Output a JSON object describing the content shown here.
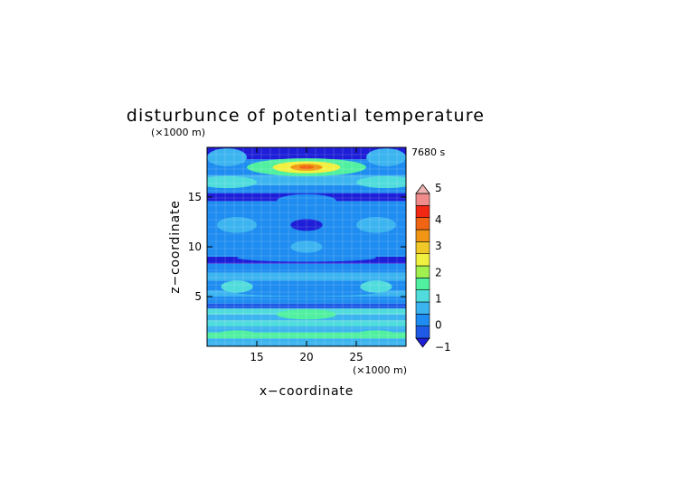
{
  "chart_data": {
    "type": "heatmap",
    "title": "disturbunce of potential temperature",
    "time_label": "7680 s",
    "xlabel": "x−coordinate",
    "ylabel": "z−coordinate",
    "x_unit": "(×1000 m)",
    "y_unit": "(×1000 m)",
    "xlim": [
      10,
      30
    ],
    "ylim": [
      0,
      20
    ],
    "x_ticks": [
      15,
      20,
      25
    ],
    "y_ticks": [
      5,
      10,
      15
    ],
    "x_tick_labels": [
      "15",
      "20",
      "25"
    ],
    "y_tick_labels": [
      "5",
      "10",
      "15"
    ],
    "grid": true,
    "colorbar": {
      "min": -1,
      "max": 5,
      "step": 0.5,
      "tick_values": [
        -1,
        0,
        1,
        2,
        3,
        4,
        5
      ],
      "tick_labels": [
        "−1",
        "0",
        "1",
        "2",
        "3",
        "4",
        "5"
      ],
      "colors": [
        "#1e1ed8",
        "#1e5ae6",
        "#1e8cf0",
        "#3cb4f0",
        "#50dcdc",
        "#50f0a0",
        "#a0f050",
        "#f0f040",
        "#f0c828",
        "#f09614",
        "#f06414",
        "#f02814",
        "#f08c8c",
        "#f0b4b4"
      ],
      "placement": "right"
    },
    "bands": [
      {
        "z": [
          0,
          0.8
        ],
        "value": 0.5
      },
      {
        "z": [
          0.8,
          1.4
        ],
        "value": 1.6
      },
      {
        "z": [
          1.4,
          2.0
        ],
        "value": 0.8
      },
      {
        "z": [
          2.0,
          2.6
        ],
        "value": 1.3
      },
      {
        "z": [
          2.6,
          3.2
        ],
        "value": 0.7
      },
      {
        "z": [
          3.2,
          3.8
        ],
        "value": 1.1
      },
      {
        "z": [
          3.8,
          4.3
        ],
        "value": -0.3
      },
      {
        "z": [
          4.3,
          5.0
        ],
        "value": 0.2
      },
      {
        "z": [
          5.0,
          5.6
        ],
        "value": 0.6
      },
      {
        "z": [
          5.6,
          6.6
        ],
        "value": 0.3
      },
      {
        "z": [
          6.6,
          7.4
        ],
        "value": 0.5
      },
      {
        "z": [
          7.4,
          8.3
        ],
        "value": 0.2
      },
      {
        "z": [
          8.3,
          9.0
        ],
        "value": -0.6
      },
      {
        "z": [
          9.0,
          14.6
        ],
        "value": 0.1
      },
      {
        "z": [
          14.6,
          15.4
        ],
        "value": -0.6
      },
      {
        "z": [
          15.4,
          16.2
        ],
        "value": 0.0
      },
      {
        "z": [
          16.2,
          17.2
        ],
        "value": 0.8
      },
      {
        "z": [
          17.2,
          18.8
        ],
        "value": 0.2
      },
      {
        "z": [
          18.8,
          20.0
        ],
        "value": -0.6
      }
    ],
    "features": [
      {
        "x": 20,
        "z": 18,
        "rx": 6.0,
        "rz": 0.9,
        "value": 1.8
      },
      {
        "x": 20,
        "z": 18,
        "rx": 3.4,
        "rz": 0.6,
        "value": 2.8
      },
      {
        "x": 20,
        "z": 18,
        "rx": 1.6,
        "rz": 0.35,
        "value": 3.8
      },
      {
        "x": 20,
        "z": 18,
        "rx": 0.7,
        "rz": 0.18,
        "value": 4.3
      },
      {
        "x": 12,
        "z": 16.5,
        "rx": 3.0,
        "rz": 0.6,
        "value": 1.2
      },
      {
        "x": 28,
        "z": 16.5,
        "rx": 3.0,
        "rz": 0.6,
        "value": 1.2
      },
      {
        "x": 12,
        "z": 19.0,
        "rx": 2.0,
        "rz": 0.9,
        "value": 0.6
      },
      {
        "x": 28,
        "z": 19.0,
        "rx": 2.0,
        "rz": 0.9,
        "value": 0.6
      },
      {
        "x": 20,
        "z": 14.6,
        "rx": 3.0,
        "rz": 0.7,
        "value": 0.3
      },
      {
        "x": 20,
        "z": 12.2,
        "rx": 4.0,
        "rz": 2.0,
        "value": 0.3
      },
      {
        "x": 20,
        "z": 12.2,
        "rx": 1.6,
        "rz": 0.6,
        "value": -0.6
      },
      {
        "x": 13,
        "z": 12.2,
        "rx": 2.0,
        "rz": 0.8,
        "value": 0.8
      },
      {
        "x": 27,
        "z": 12.2,
        "rx": 2.0,
        "rz": 0.8,
        "value": 0.8
      },
      {
        "x": 20,
        "z": 10.0,
        "rx": 1.6,
        "rz": 0.6,
        "value": 0.6
      },
      {
        "x": 20,
        "z": 8.9,
        "rx": 7.0,
        "rz": 0.4,
        "value": 0.3
      },
      {
        "x": 20,
        "z": 5.4,
        "rx": 7.0,
        "rz": 0.35,
        "value": 0.4
      },
      {
        "x": 13,
        "z": 6.0,
        "rx": 1.6,
        "rz": 0.6,
        "value": 1.1
      },
      {
        "x": 27,
        "z": 6.0,
        "rx": 1.6,
        "rz": 0.6,
        "value": 1.1
      },
      {
        "x": 20,
        "z": 3.2,
        "rx": 3.0,
        "rz": 0.5,
        "value": 1.6
      },
      {
        "x": 13,
        "z": 1.2,
        "rx": 2.0,
        "rz": 0.4,
        "value": 1.8
      },
      {
        "x": 27,
        "z": 1.2,
        "rx": 2.0,
        "rz": 0.4,
        "value": 1.8
      }
    ]
  }
}
